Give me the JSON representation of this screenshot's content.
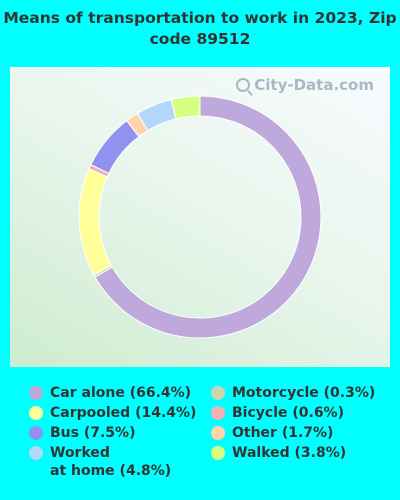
{
  "chart_data": {
    "type": "pie",
    "title": "Means of transportation to work in 2023, Zip code 89512",
    "watermark": "City-Data.com",
    "slices": [
      {
        "label": "Car alone (66.4%)",
        "value": 66.4,
        "color": "#bfa8db"
      },
      {
        "label": "Motorcycle (0.3%)",
        "value": 0.3,
        "color": "#c9d6ae"
      },
      {
        "label": "Carpooled (14.4%)",
        "value": 14.4,
        "color": "#ffff99"
      },
      {
        "label": "Bicycle (0.6%)",
        "value": 0.6,
        "color": "#f0b0b4"
      },
      {
        "label": "Bus (7.5%)",
        "value": 7.5,
        "color": "#9191f0"
      },
      {
        "label": "Other (1.7%)",
        "value": 1.7,
        "color": "#ffd4aa"
      },
      {
        "label": "Worked at home (4.8%)",
        "value": 4.8,
        "color": "#b3d6fb"
      },
      {
        "label": "Walked (3.8%)",
        "value": 3.8,
        "color": "#d5ff80"
      }
    ],
    "legend": [
      {
        "line1": "Car alone (66.4%)",
        "color": "#bfa8db"
      },
      {
        "line1": "Carpooled (14.4%)",
        "color": "#ffff99"
      },
      {
        "line1": "Bus (7.5%)",
        "color": "#9191f0"
      },
      {
        "line1": "Worked",
        "line2": "at home (4.8%)",
        "color": "#b3d6fb"
      },
      {
        "line1": "Motorcycle (0.3%)",
        "color": "#c9d6ae"
      },
      {
        "line1": "Bicycle (0.6%)",
        "color": "#f0b0b4"
      },
      {
        "line1": "Other (1.7%)",
        "color": "#ffd4aa"
      },
      {
        "line1": "Walked (3.8%)",
        "color": "#d5ff80"
      }
    ]
  }
}
